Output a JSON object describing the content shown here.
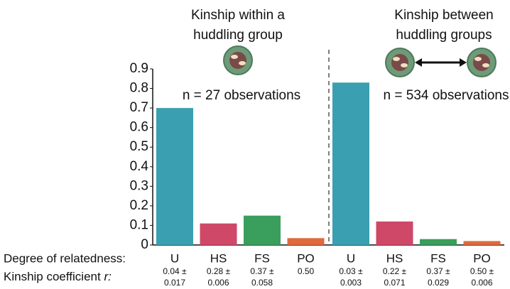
{
  "chart_data": {
    "type": "bar",
    "ylim": [
      0,
      0.9
    ],
    "yticks": [
      0,
      0.1,
      0.2,
      0.3,
      0.4,
      0.5,
      0.6,
      0.7,
      0.8,
      0.9
    ],
    "row_labels": {
      "relatedness": "Degree of relatedness:",
      "kinship_text": "Kinship coefficient",
      "kinship_symbol": "r:"
    },
    "panels": [
      {
        "title_lines": [
          "Kinship within a",
          "huddling group"
        ],
        "n_label": "n = 27 observations",
        "categories": [
          "U",
          "HS",
          "FS",
          "PO"
        ],
        "values": [
          0.7,
          0.11,
          0.15,
          0.035
        ],
        "colors": [
          "#3a9fb1",
          "#cf4868",
          "#3a9e5c",
          "#e0693e"
        ],
        "kinship": [
          [
            "0.04 ±",
            "0.017"
          ],
          [
            "0.28 ±",
            "0.006"
          ],
          [
            "0.37 ±",
            "0.058"
          ],
          [
            "0.50"
          ]
        ]
      },
      {
        "title_lines": [
          "Kinship between",
          "huddling groups"
        ],
        "n_label": "n = 534 observations",
        "categories": [
          "U",
          "HS",
          "FS",
          "PO"
        ],
        "values": [
          0.83,
          0.12,
          0.03,
          0.02
        ],
        "colors": [
          "#3a9fb1",
          "#cf4868",
          "#3a9e5c",
          "#e0693e"
        ],
        "kinship": [
          [
            "0.03 ±",
            "0.003"
          ],
          [
            "0.22 ±",
            "0.071"
          ],
          [
            "0.37 ±",
            "0.029"
          ],
          [
            "0.50 ±",
            "0.006"
          ]
        ]
      }
    ]
  }
}
